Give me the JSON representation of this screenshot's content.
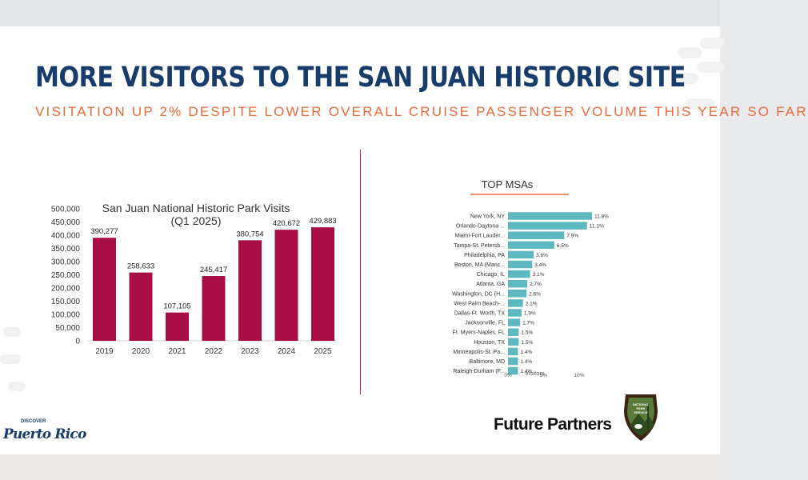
{
  "page": {
    "title": "MORE VISITORS TO THE SAN JUAN HISTORIC SITE",
    "subtitle": "VISITATION UP 2% DESPITE LOWER OVERALL CRUISE PASSENGER VOLUME THIS YEAR SO FAR"
  },
  "logos": {
    "discover_small": "DISCOVER",
    "puerto_rico": "Puerto Rico",
    "future_partners": "Future Partners",
    "nps_text": [
      "NATIONAL",
      "PARK",
      "SERVICE"
    ]
  },
  "colors": {
    "title": "#173c6b",
    "subtitle": "#ee6a39",
    "bar_left": "#a80e45",
    "bar_right": "#5db8bf",
    "divider": "#c4203f"
  },
  "chart_data": [
    {
      "type": "bar",
      "title": "San Juan National Historic Park Visits",
      "subtitle": "(Q1 2025)",
      "categories": [
        "2019",
        "2020",
        "2021",
        "2022",
        "2023",
        "2024",
        "2025"
      ],
      "values": [
        390277,
        258633,
        107105,
        245417,
        380754,
        420672,
        429883
      ],
      "data_labels": [
        "390,277",
        "258,633",
        "107,105",
        "245,417",
        "380,754",
        "420,672",
        "429,883"
      ],
      "ylim": [
        0,
        500000
      ],
      "yticks": [
        0,
        50000,
        100000,
        150000,
        200000,
        250000,
        300000,
        350000,
        400000,
        450000,
        500000
      ],
      "ytick_labels": [
        "0",
        "50,000",
        "100,000",
        "150,000",
        "200,000",
        "250,000",
        "300,000",
        "350,000",
        "400,000",
        "450,000",
        "500,000"
      ],
      "xlabel": "",
      "ylabel": "",
      "grid": false
    },
    {
      "type": "bar",
      "orientation": "horizontal",
      "title": "TOP MSAs",
      "categories": [
        "New York, NY",
        "Orlando-Daytona ...",
        "Miami-Fort Lauder...",
        "Tampa-St. Petersb...",
        "Philadelphia, PA",
        "Boston, MA (Manc...",
        "Chicago, IL",
        "Atlanta, GA",
        "Washington, DC (H...",
        "West Palm Beach-...",
        "Dallas-Ft. Worth, TX",
        "Jacksonville, FL",
        "Ft. Myers-Naples, FL",
        "Houston, TX",
        "Minneapolis-St. Pa...",
        "Baltimore, MD",
        "Raleigh-Durham (F..."
      ],
      "values": [
        11.8,
        11.1,
        7.9,
        6.5,
        3.6,
        3.4,
        3.1,
        2.7,
        2.6,
        2.1,
        1.9,
        1.7,
        1.5,
        1.5,
        1.4,
        1.4,
        1.4
      ],
      "data_labels": [
        "11.8%",
        "11.1%",
        "7.9%",
        "6.5%",
        "3.6%",
        "3.4%",
        "3.1%",
        "2.7%",
        "2.6%",
        "2.1%",
        "1.9%",
        "1.7%",
        "1.5%",
        "1.5%",
        "1.4%",
        "1.4%",
        "1.4%"
      ],
      "xlim": [
        0,
        12
      ],
      "xticks": [
        0,
        5,
        10
      ],
      "xtick_labels": [
        "0%",
        "5%",
        "10%"
      ],
      "xlabel": "Visitors",
      "ylabel": "",
      "grid": false
    }
  ]
}
